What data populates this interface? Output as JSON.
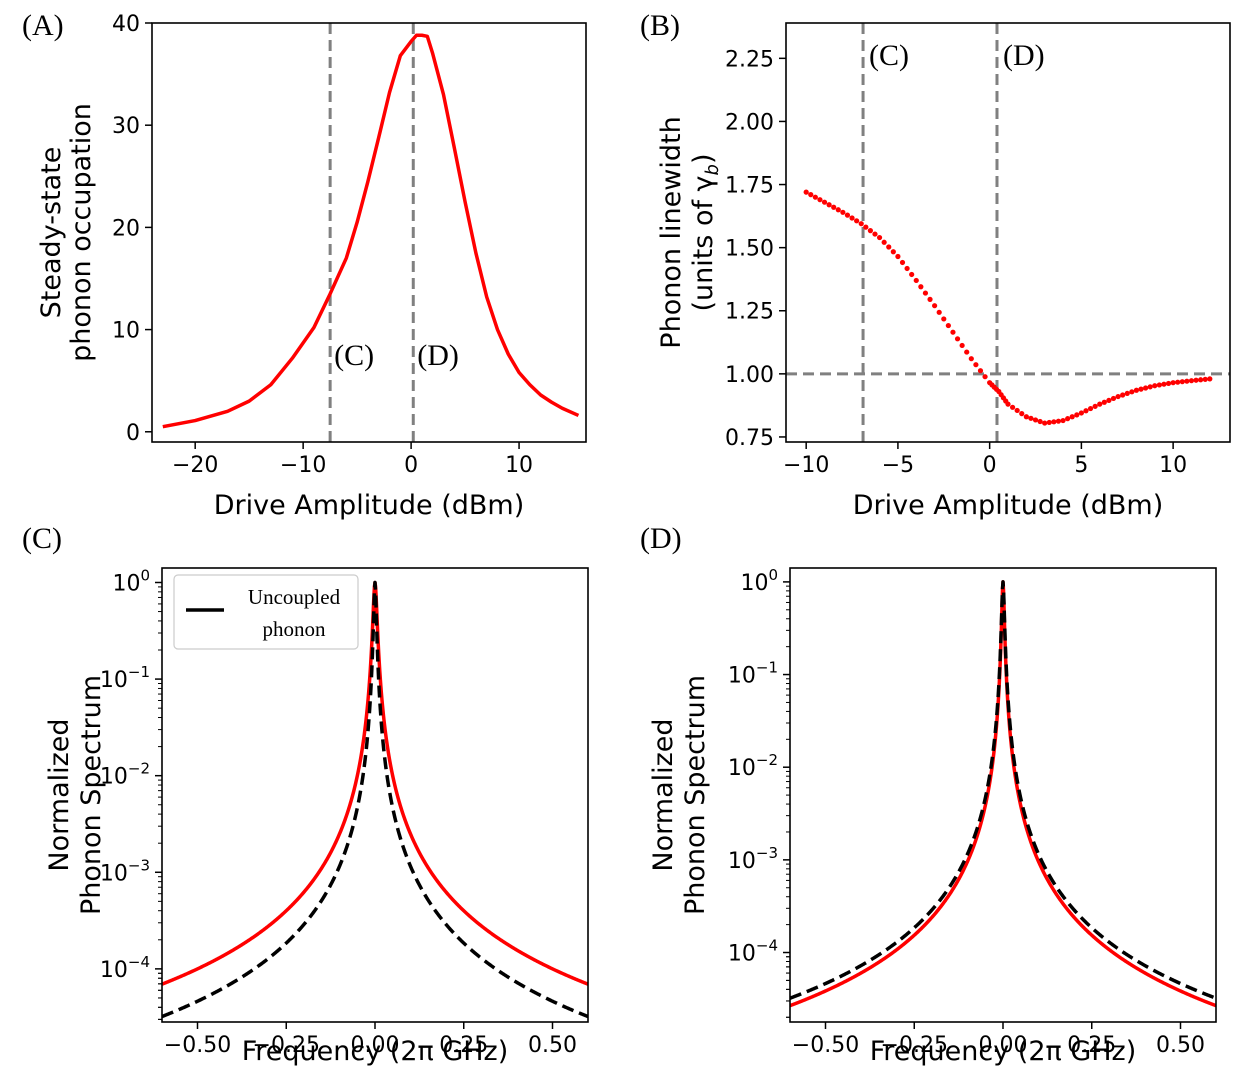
{
  "colors": {
    "red": "#ff0000",
    "black": "#000000",
    "guide": "#808080"
  },
  "chart_data": [
    {
      "panel": "(A)",
      "type": "line",
      "xlabel": "Drive Amplitude (dBm)",
      "ylabel": [
        "Steady-state",
        "phonon occupation"
      ],
      "xlim": [
        -24,
        16.2
      ],
      "ylim": [
        -1,
        40
      ],
      "xticks": [
        -20,
        -10,
        0,
        10
      ],
      "xtick_labels": [
        "−20",
        "−10",
        "0",
        "10"
      ],
      "yticks": [
        0,
        10,
        20,
        30,
        40
      ],
      "ytick_labels": [
        "0",
        "10",
        "20",
        "30",
        "40"
      ],
      "grid": false,
      "series": [
        {
          "color": "#ff0000",
          "style": "solid",
          "x": [
            -23,
            -20,
            -17,
            -15,
            -13,
            -11,
            -9,
            -7.5,
            -6,
            -5,
            -4,
            -3,
            -2,
            -1,
            0,
            0.5,
            1,
            1.5,
            2,
            3,
            4,
            5,
            6,
            7,
            8,
            9,
            10,
            11,
            12,
            13,
            14,
            15.5
          ],
          "y": [
            0.5,
            1.1,
            2.0,
            3.0,
            4.6,
            7.2,
            10.2,
            13.5,
            17.0,
            20.5,
            24.5,
            28.8,
            33.2,
            36.8,
            38.2,
            38.8,
            38.8,
            38.7,
            37.0,
            33.0,
            27.8,
            22.5,
            17.5,
            13.2,
            10.0,
            7.6,
            5.8,
            4.6,
            3.6,
            2.9,
            2.3,
            1.6
          ]
        }
      ],
      "guides": [
        {
          "orientation": "vertical",
          "value": -7.5,
          "label": "(C)"
        },
        {
          "orientation": "vertical",
          "value": 0.2,
          "label": "(D)"
        }
      ]
    },
    {
      "panel": "(B)",
      "type": "scatter",
      "xlabel": "Drive Amplitude (dBm)",
      "ylabel": [
        "Phonon linewidth",
        "(units of γ",
        "b",
        ")"
      ],
      "xlim": [
        -11.1,
        13.1
      ],
      "ylim": [
        0.73,
        2.39
      ],
      "xticks": [
        -10,
        -5,
        0,
        5,
        10
      ],
      "xtick_labels": [
        "−10",
        "−5",
        "0",
        "5",
        "10"
      ],
      "yticks": [
        0.75,
        1.0,
        1.25,
        1.5,
        1.75,
        2.0,
        2.25
      ],
      "ytick_labels": [
        "0.75",
        "1.00",
        "1.25",
        "1.50",
        "1.75",
        "2.00",
        "2.25"
      ],
      "grid": false,
      "series": [
        {
          "color": "#ff0000",
          "style": "dotted",
          "x": [
            -10,
            -9,
            -8,
            -7,
            -6,
            -5,
            -4,
            -3,
            -2,
            -1,
            0,
            0.5,
            1,
            2,
            3,
            4,
            5,
            6,
            7,
            8,
            9,
            10,
            11,
            12
          ],
          "y": [
            1.72,
            1.68,
            1.64,
            1.595,
            1.54,
            1.465,
            1.37,
            1.27,
            1.165,
            1.06,
            0.965,
            0.93,
            0.88,
            0.83,
            0.805,
            0.815,
            0.845,
            0.88,
            0.91,
            0.935,
            0.953,
            0.965,
            0.973,
            0.98
          ]
        }
      ],
      "guides": [
        {
          "orientation": "vertical",
          "value": -6.9,
          "label": "(C)"
        },
        {
          "orientation": "vertical",
          "value": 0.4,
          "label": "(D)"
        },
        {
          "orientation": "horizontal",
          "value": 1.0
        }
      ]
    },
    {
      "panel": "(C)",
      "type": "line",
      "xlabel": "Frequency (2π GHz)",
      "ylabel": [
        "Normalized",
        "Phonon Spectrum"
      ],
      "yscale": "log",
      "xlim": [
        -0.6,
        0.6
      ],
      "ylim_log10": [
        -4.55,
        0.15
      ],
      "xticks": [
        -0.5,
        -0.25,
        0.0,
        0.25,
        0.5
      ],
      "xtick_labels": [
        "−0.50",
        "−0.25",
        "0.00",
        "0.25",
        "0.50"
      ],
      "yticks_log10": [
        0,
        -1,
        -2,
        -3,
        -4
      ],
      "grid": false,
      "legend": {
        "position": "top-left",
        "entries": [
          {
            "label": [
              "Uncoupled",
              "phonon"
            ],
            "color": "#000000",
            "style": "solid"
          }
        ]
      },
      "series": [
        {
          "color": "#ff0000",
          "style": "solid",
          "model": "lorentzian",
          "center": 0.0,
          "halfwidth": 0.005
        },
        {
          "color": "#000000",
          "style": "dashed",
          "model": "lorentzian",
          "center": 0.0,
          "halfwidth": 0.0034
        }
      ]
    },
    {
      "panel": "(D)",
      "type": "line",
      "xlabel": "Frequency (2π GHz)",
      "ylabel": [
        "Normalized",
        "Phonon Spectrum"
      ],
      "yscale": "log",
      "xlim": [
        -0.6,
        0.6
      ],
      "ylim_log10": [
        -4.75,
        0.15
      ],
      "xticks": [
        -0.5,
        -0.25,
        0.0,
        0.25,
        0.5
      ],
      "xtick_labels": [
        "−0.50",
        "−0.25",
        "0.00",
        "0.25",
        "0.50"
      ],
      "yticks_log10": [
        0,
        -1,
        -2,
        -3,
        -4
      ],
      "grid": false,
      "series": [
        {
          "color": "#ff0000",
          "style": "solid",
          "model": "lorentzian",
          "center": 0.0,
          "halfwidth": 0.0031
        },
        {
          "color": "#000000",
          "style": "dashed",
          "model": "lorentzian",
          "center": 0.0,
          "halfwidth": 0.0034
        }
      ]
    }
  ]
}
